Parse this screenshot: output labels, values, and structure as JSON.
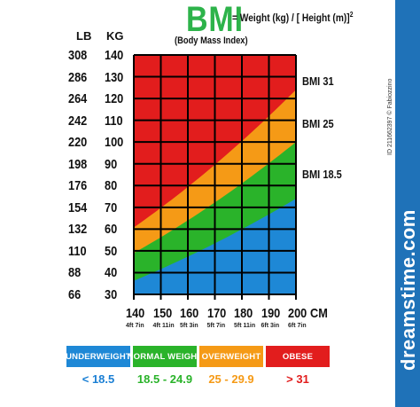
{
  "header": {
    "title": "BMI",
    "formula": "= Weight (kg) / [ Height (m)]",
    "formula_exp": "2",
    "subtitle": "(Body Mass Index)"
  },
  "axes": {
    "lb_header": "LB",
    "kg_header": "KG",
    "lb_labels": [
      "308",
      "286",
      "264",
      "242",
      "220",
      "198",
      "176",
      "154",
      "132",
      "110",
      "88",
      "66"
    ],
    "kg_labels": [
      "140",
      "130",
      "120",
      "110",
      "100",
      "90",
      "80",
      "70",
      "60",
      "50",
      "40",
      "30"
    ],
    "cm_labels": [
      "140",
      "150",
      "160",
      "170",
      "180",
      "190",
      "200"
    ],
    "cm_unit": "CM",
    "ft_labels": [
      "4ft 7in",
      "4ft 11in",
      "5ft 3in",
      "5ft 7in",
      "5ft 11in",
      "6ft 3in",
      "6ft 7in"
    ]
  },
  "bmi_lines": {
    "bmi31": "BMI 31",
    "bmi25": "BMI 25",
    "bmi185": "BMI 18.5"
  },
  "legend": [
    {
      "label": "UNDERWEIGHT",
      "range": "< 18.5",
      "color": "#1e88d6"
    },
    {
      "label": "NORMAL WEIGHT",
      "range": "18.5 - 24.9",
      "color": "#2ab32a"
    },
    {
      "label": "OVERWEIGHT",
      "range": "25 - 29.9",
      "color": "#f59a16"
    },
    {
      "label": "OBESE",
      "range": "> 31",
      "color": "#e21d1d"
    }
  ],
  "colors": {
    "underweight": "#1e88d6",
    "normal": "#2ab32a",
    "overweight": "#f59a16",
    "obese": "#e21d1d",
    "title": "#2db34a",
    "range_text": "#1a7fd4",
    "brand_bar": "#1f72b8"
  },
  "watermark": {
    "brand": "dreamstime.com",
    "id_text": "ID 211662397 © Fabiozzino"
  },
  "chart_data": {
    "type": "heatmap",
    "title": "BMI",
    "subtitle": "(Body Mass Index)",
    "xlabel": "CM",
    "ylabel": "KG",
    "x": [
      140,
      150,
      160,
      170,
      180,
      190,
      200
    ],
    "y": [
      30,
      40,
      50,
      60,
      70,
      80,
      90,
      100,
      110,
      120,
      130,
      140
    ],
    "xlim": [
      140,
      200
    ],
    "ylim": [
      30,
      140
    ],
    "thresholds": [
      18.5,
      25,
      31
    ],
    "categories": [
      "UNDERWEIGHT",
      "NORMAL WEIGHT",
      "OVERWEIGHT",
      "OBESE"
    ],
    "ranges": [
      "< 18.5",
      "18.5 - 24.9",
      "25 - 29.9",
      "> 31"
    ],
    "grid": true
  }
}
